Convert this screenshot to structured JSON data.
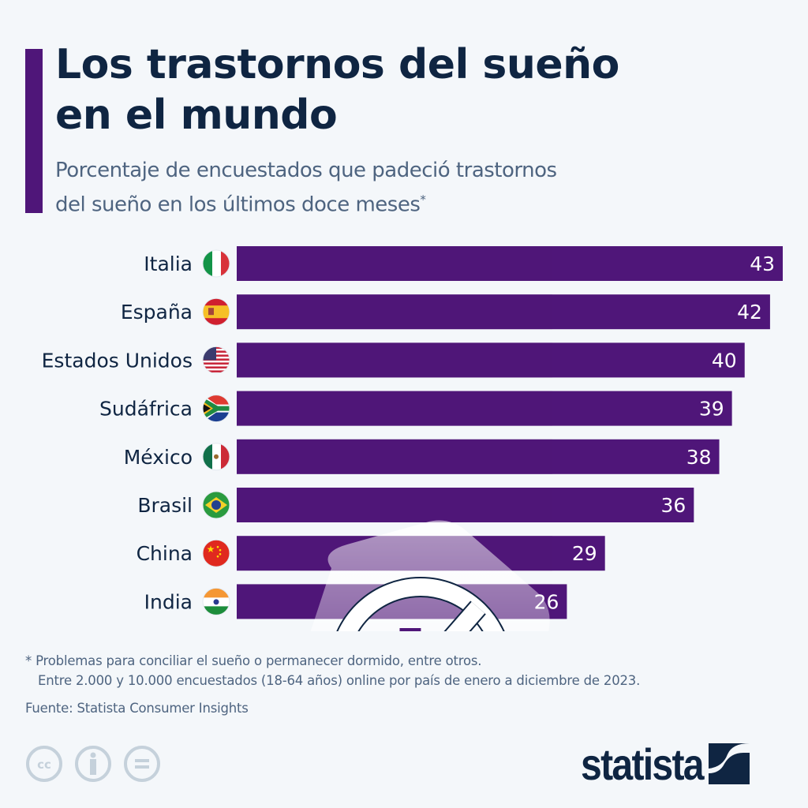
{
  "header": {
    "title_line1": "Los trastornos del sueño",
    "title_line2": "en el mundo",
    "subtitle_line1": "Porcentaje de encuestados que padeció trastornos",
    "subtitle_line2": "del sueño en los últimos doce meses",
    "subtitle_marker": "*"
  },
  "colors": {
    "bar": "#4f1679",
    "accent": "#4f1679",
    "title": "#0f2542",
    "subtitle": "#4e6480",
    "background": "#f4f7fa",
    "value_label": "#ffffff"
  },
  "chart_data": {
    "type": "bar",
    "orientation": "horizontal",
    "title": "Los trastornos del sueño en el mundo",
    "subtitle": "Porcentaje de encuestados que padeció trastornos del sueño en los últimos doce meses*",
    "xlabel": "",
    "ylabel": "",
    "unit": "%",
    "xlim": [
      0,
      43
    ],
    "grid": false,
    "legend": "none",
    "categories": [
      "Italia",
      "España",
      "Estados Unidos",
      "Sudáfrica",
      "México",
      "Brasil",
      "China",
      "India"
    ],
    "values": [
      43,
      42,
      40,
      39,
      38,
      36,
      29,
      26
    ],
    "flags": [
      "italy-flag-icon",
      "spain-flag-icon",
      "usa-flag-icon",
      "south-africa-flag-icon",
      "mexico-flag-icon",
      "brazil-flag-icon",
      "china-flag-icon",
      "india-flag-icon"
    ],
    "illustration": "no-sleep-zzz-icon"
  },
  "footer": {
    "note_line1": "* Problemas para conciliar el sueño o permanecer dormido, entre otros.",
    "note_line2": "Entre 2.000 y 10.000 encuestados (18-64 años) online por país de enero a diciembre de 2023.",
    "source": "Fuente: Statista Consumer Insights",
    "license_icons": [
      "cc-icon",
      "attribution-icon",
      "no-derivatives-icon"
    ],
    "brand": "statista",
    "cc_text": "cc"
  }
}
